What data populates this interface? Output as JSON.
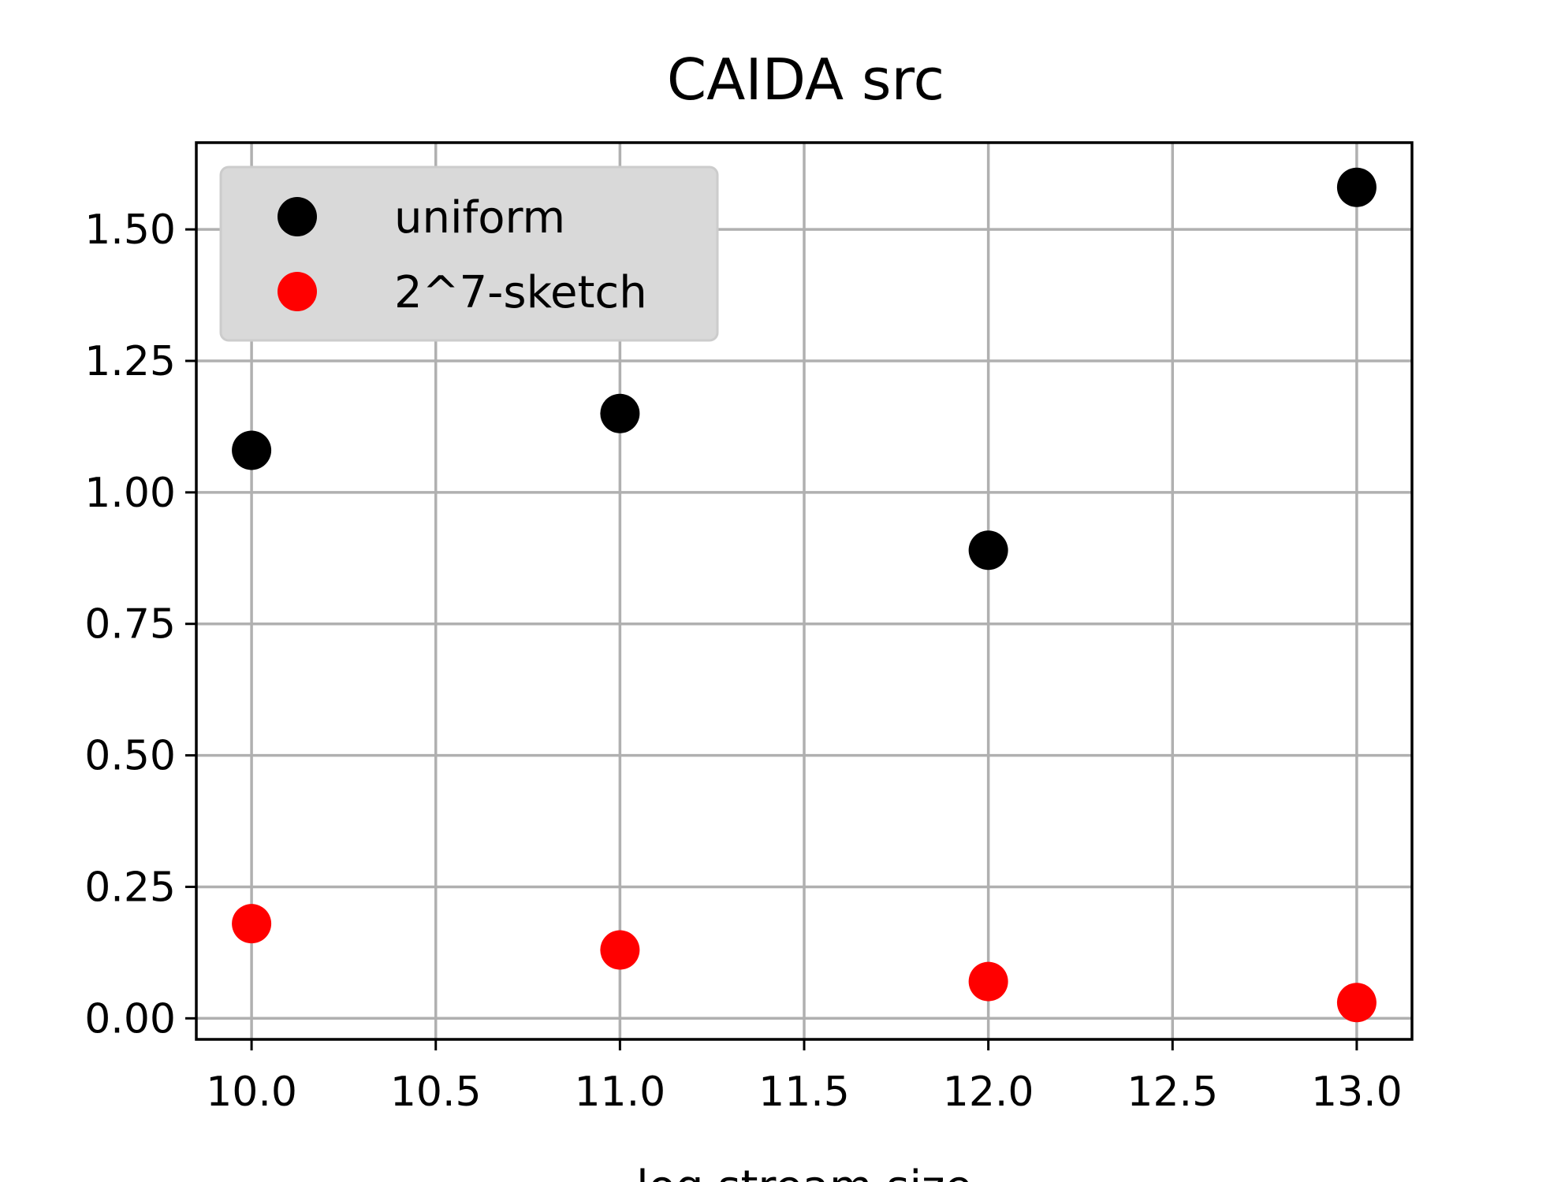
{
  "chart_data": {
    "type": "scatter",
    "title": "CAIDA src",
    "xlabel": "log stream size",
    "ylabel": "",
    "xlim": [
      9.85,
      13.15
    ],
    "ylim": [
      -0.04,
      1.665
    ],
    "xticks": [
      10.0,
      10.5,
      11.0,
      11.5,
      12.0,
      12.5,
      13.0
    ],
    "xtick_labels": [
      "10.0",
      "10.5",
      "11.0",
      "11.5",
      "12.0",
      "12.5",
      "13.0"
    ],
    "yticks": [
      0.0,
      0.25,
      0.5,
      0.75,
      1.0,
      1.25,
      1.5
    ],
    "ytick_labels": [
      "0.00",
      "0.25",
      "0.50",
      "0.75",
      "1.00",
      "1.25",
      "1.50"
    ],
    "grid": true,
    "legend_position": "top-left",
    "series": [
      {
        "name": "uniform",
        "color": "#000000",
        "x": [
          10,
          11,
          12,
          13
        ],
        "y": [
          1.08,
          1.15,
          0.89,
          1.58
        ]
      },
      {
        "name": "2^7-sketch",
        "color": "#ff0000",
        "x": [
          10,
          11,
          12,
          13
        ],
        "y": [
          0.18,
          0.13,
          0.07,
          0.03
        ]
      }
    ]
  }
}
